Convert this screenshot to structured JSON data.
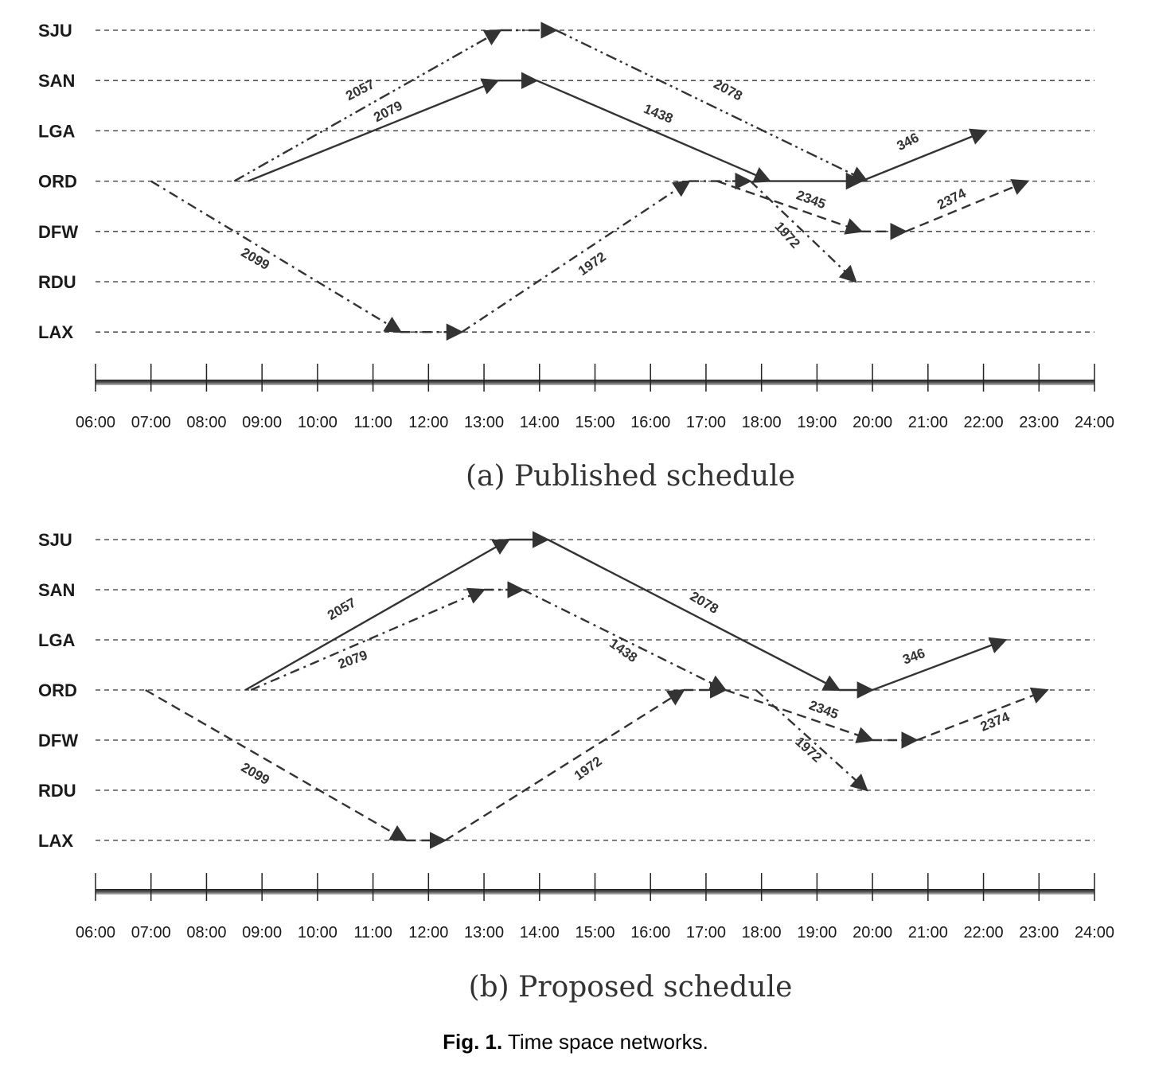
{
  "airports": [
    "SJU",
    "SAN",
    "LGA",
    "ORD",
    "DFW",
    "RDU",
    "LAX"
  ],
  "time_ticks": [
    "06:00",
    "07:00",
    "08:00",
    "09:00",
    "10:00",
    "11:00",
    "12:00",
    "13:00",
    "14:00",
    "15:00",
    "16:00",
    "17:00",
    "18:00",
    "19:00",
    "20:00",
    "21:00",
    "22:00",
    "23:00",
    "24:00"
  ],
  "colors": {
    "line": "#333333",
    "grid": "#333333",
    "axis": "#222222"
  },
  "panels": [
    {
      "id": "published",
      "caption": "(a) Published schedule",
      "flights": [
        {
          "label": "2057",
          "style": "dashdotdot",
          "legs": [
            [
              "ORD",
              8.5,
              "SJU",
              13.3
            ],
            [
              "SJU",
              14.3,
              "ORD",
              19.9
            ]
          ],
          "arrow_at_each_leg": true
        },
        {
          "label": "2079",
          "style": "solid",
          "legs": [
            [
              "ORD",
              8.75,
              "SAN",
              13.25
            ],
            [
              "SAN",
              13.95,
              "ORD",
              18.15
            ],
            [
              "ORD",
              19.8,
              "LGA",
              22.05
            ]
          ],
          "arrow_at_each_leg": true
        },
        {
          "label": "2099",
          "style": "dashdot",
          "legs": [
            [
              "ORD",
              7.0,
              "LAX",
              11.5
            ],
            [
              "LAX",
              12.6,
              "ORD",
              16.7
            ],
            [
              "ORD",
              17.8,
              "RDU",
              19.7
            ]
          ],
          "arrow_at_each_leg": true
        },
        {
          "label": "2345",
          "style": "dashed",
          "legs": [
            [
              "ORD",
              17.2,
              "DFW",
              19.8
            ],
            [
              "DFW",
              20.6,
              "ORD",
              22.8
            ]
          ],
          "arrow_at_each_leg": true
        }
      ],
      "flight_labels": [
        {
          "text": "2057"
        },
        {
          "text": "2079"
        },
        {
          "text": "1438"
        },
        {
          "text": "2078"
        },
        {
          "text": "346"
        },
        {
          "text": "2345"
        },
        {
          "text": "2374"
        },
        {
          "text": "1972"
        },
        {
          "text": "2099"
        },
        {
          "text": "1972"
        }
      ]
    },
    {
      "id": "proposed",
      "caption": "(b) Proposed schedule",
      "flights": [
        {
          "label": "2057",
          "style": "solid",
          "legs": [
            [
              "ORD",
              8.7,
              "SJU",
              13.45
            ],
            [
              "SJU",
              14.15,
              "ORD",
              19.4
            ],
            [
              "ORD",
              20.0,
              "LGA",
              22.4
            ]
          ],
          "arrow_at_each_leg": true
        },
        {
          "label": "2079",
          "style": "dashdot",
          "legs": [
            [
              "ORD",
              8.8,
              "SAN",
              13.0
            ],
            [
              "SAN",
              13.7,
              "ORD",
              17.35
            ]
          ],
          "arrow_at_each_leg": true
        },
        {
          "label": "2099",
          "style": "dashed",
          "legs": [
            [
              "ORD",
              6.9,
              "LAX",
              11.6
            ],
            [
              "LAX",
              12.3,
              "ORD",
              16.6
            ],
            [
              "ORD",
              17.35,
              "DFW",
              20.0
            ],
            [
              "DFW",
              20.8,
              "ORD",
              23.15
            ]
          ],
          "arrow_at_each_leg": true
        },
        {
          "label": "1972",
          "style": "dashdot",
          "legs": [
            [
              "ORD",
              17.9,
              "RDU",
              19.9
            ]
          ],
          "arrow_at_each_leg": true
        }
      ],
      "flight_labels": [
        {
          "text": "2057"
        },
        {
          "text": "2079"
        },
        {
          "text": "1438"
        },
        {
          "text": "2078"
        },
        {
          "text": "346"
        },
        {
          "text": "2345"
        },
        {
          "text": "2374"
        },
        {
          "text": "1972"
        },
        {
          "text": "2099"
        },
        {
          "text": "1972"
        }
      ]
    }
  ],
  "figure_caption": {
    "prefix": "Fig. 1.",
    "text": "Time space networks."
  }
}
